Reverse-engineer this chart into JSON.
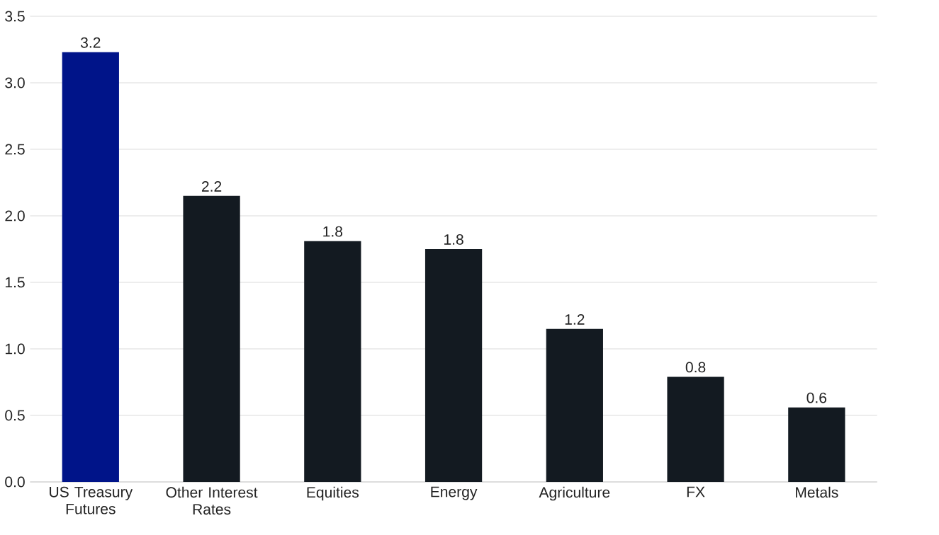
{
  "chart_data": {
    "type": "bar",
    "categories": [
      "US Treasury Futures",
      "Other Interest Rates",
      "Equities",
      "Energy",
      "Agriculture",
      "FX",
      "Metals"
    ],
    "values": [
      3.23,
      2.15,
      1.81,
      1.75,
      1.15,
      0.79,
      0.56
    ],
    "value_labels": [
      "3.2",
      "2.2",
      "1.8",
      "1.8",
      "1.2",
      "0.8",
      "0.6"
    ],
    "colors": [
      "#001489",
      "#131a21",
      "#131a21",
      "#131a21",
      "#131a21",
      "#131a21",
      "#131a21"
    ],
    "ylim": [
      0,
      3.5
    ],
    "yticks": [
      {
        "value": 0,
        "label": "0.0"
      },
      0.5,
      {
        "value": 1,
        "label": "1.0"
      },
      1.5,
      {
        "value": 2,
        "label": "2.0"
      },
      2.5,
      {
        "value": 3,
        "label": "3.0"
      },
      3.5
    ],
    "grid": "y"
  }
}
